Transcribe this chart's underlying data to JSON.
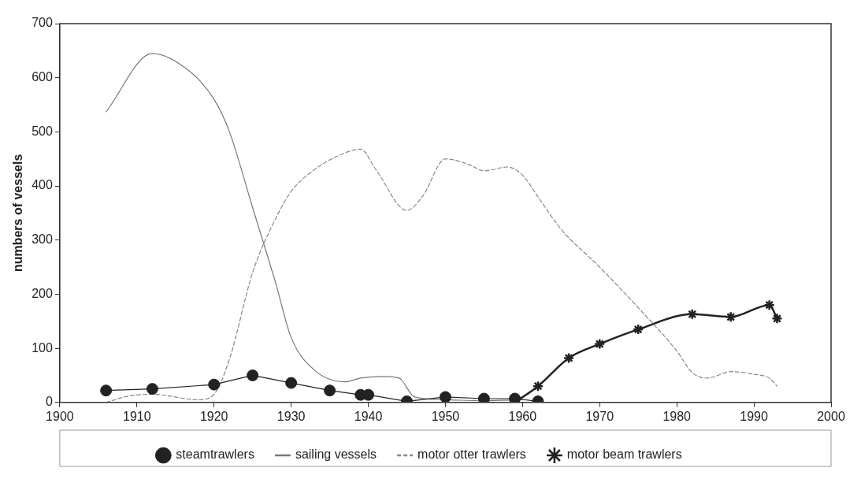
{
  "chart_data": {
    "type": "line",
    "ylabel": "numbers of vessels",
    "xlim": [
      1900,
      2000
    ],
    "xticks": [
      1900,
      1910,
      1920,
      1930,
      1940,
      1950,
      1960,
      1970,
      1980,
      1990,
      2000
    ],
    "ylim": [
      0,
      700
    ],
    "yticks": [
      0,
      100,
      200,
      300,
      400,
      500,
      600,
      700
    ],
    "grid": false,
    "legend": "bottom",
    "series": [
      {
        "name": "steamtrawlers",
        "color": "#222222",
        "marker": "circle",
        "line_style": "solid",
        "x": [
          1906,
          1912,
          1920,
          1925,
          1930,
          1935,
          1939,
          1940,
          1945,
          1950,
          1955,
          1959,
          1962
        ],
        "values": [
          22,
          25,
          33,
          50,
          36,
          22,
          14,
          14,
          2,
          10,
          7,
          7,
          2
        ]
      },
      {
        "name": "sailing vessels",
        "color": "#777777",
        "marker": "none",
        "line_style": "solid",
        "x": [
          1906,
          1912,
          1917,
          1920,
          1922,
          1925,
          1928,
          1930,
          1933,
          1937,
          1939,
          1942,
          1944,
          1946,
          1950,
          1955,
          1960
        ],
        "values": [
          537,
          645,
          610,
          560,
          500,
          360,
          220,
          120,
          60,
          38,
          45,
          48,
          45,
          10,
          5,
          3,
          5
        ]
      },
      {
        "name": "motor otter trawlers",
        "color": "#888888",
        "marker": "none",
        "line_style": "dashed",
        "x": [
          1906,
          1909,
          1912,
          1918,
          1920,
          1922,
          1925,
          1928,
          1930,
          1933,
          1936,
          1939,
          1941,
          1945,
          1947,
          1950,
          1953,
          1955,
          1958,
          1960,
          1962,
          1965,
          1970,
          1975,
          1980,
          1982,
          1984,
          1987,
          1990,
          1992,
          1993
        ],
        "values": [
          0,
          12,
          15,
          5,
          15,
          80,
          240,
          340,
          390,
          430,
          455,
          468,
          430,
          355,
          380,
          450,
          440,
          428,
          435,
          420,
          380,
          320,
          250,
          175,
          95,
          55,
          45,
          57,
          52,
          45,
          30
        ]
      },
      {
        "name": "motor beam trawlers",
        "color": "#222222",
        "marker": "cross",
        "line_style": "solid",
        "x": [
          1959,
          1962,
          1966,
          1970,
          1975,
          1982,
          1987,
          1992,
          1993
        ],
        "values": [
          0,
          30,
          82,
          108,
          135,
          163,
          158,
          180,
          155
        ]
      }
    ]
  }
}
